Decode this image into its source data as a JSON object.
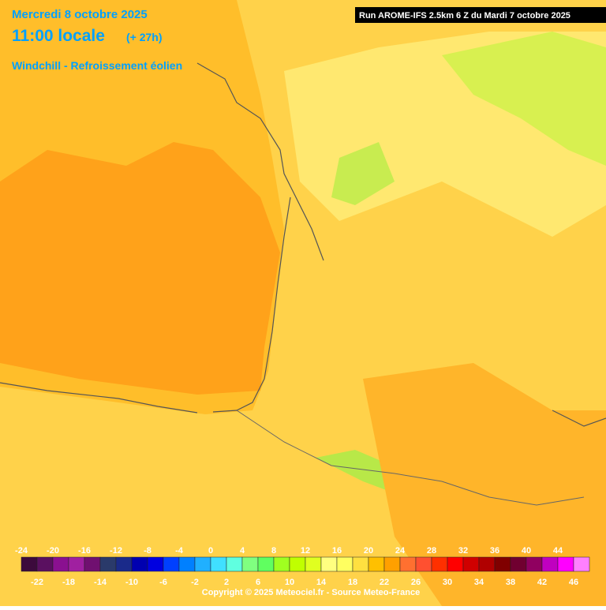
{
  "header": {
    "date": "Mercredi 8 octobre 2025",
    "time": "11:00 locale",
    "offset": "(+ 27h)",
    "parameter": "Windchill - Refroissement éolien",
    "run": "Run AROME-IFS 2.5km 6 Z du Mardi 7 octobre 2025"
  },
  "legend": {
    "labels": [
      -24,
      -22,
      -20,
      -18,
      -16,
      -14,
      -12,
      -10,
      -8,
      -6,
      -4,
      -2,
      0,
      2,
      4,
      6,
      8,
      10,
      12,
      14,
      16,
      18,
      20,
      22,
      24,
      26,
      28,
      30,
      32,
      34,
      36,
      38,
      40,
      42,
      44,
      46
    ],
    "colors": [
      "#3c0a3c",
      "#5a1060",
      "#8a1090",
      "#a020a0",
      "#701070",
      "#2a3a6a",
      "#1a2a8a",
      "#0000b0",
      "#0000e0",
      "#0040ff",
      "#0080ff",
      "#20b0ff",
      "#40e0ff",
      "#60ffe0",
      "#80ff80",
      "#60ff60",
      "#a0ff20",
      "#c0ff00",
      "#e0ff20",
      "#ffff80",
      "#ffff60",
      "#ffe040",
      "#ffc000",
      "#ffa000",
      "#ff7030",
      "#ff5030",
      "#ff3000",
      "#ff0000",
      "#d00000",
      "#b00000",
      "#800000",
      "#700030",
      "#900060",
      "#c000c0",
      "#ff00ff",
      "#ff80ff"
    ]
  },
  "footer": {
    "copyright": "Copyright © 2025 Meteociel.fr - Source Meteo-France"
  }
}
